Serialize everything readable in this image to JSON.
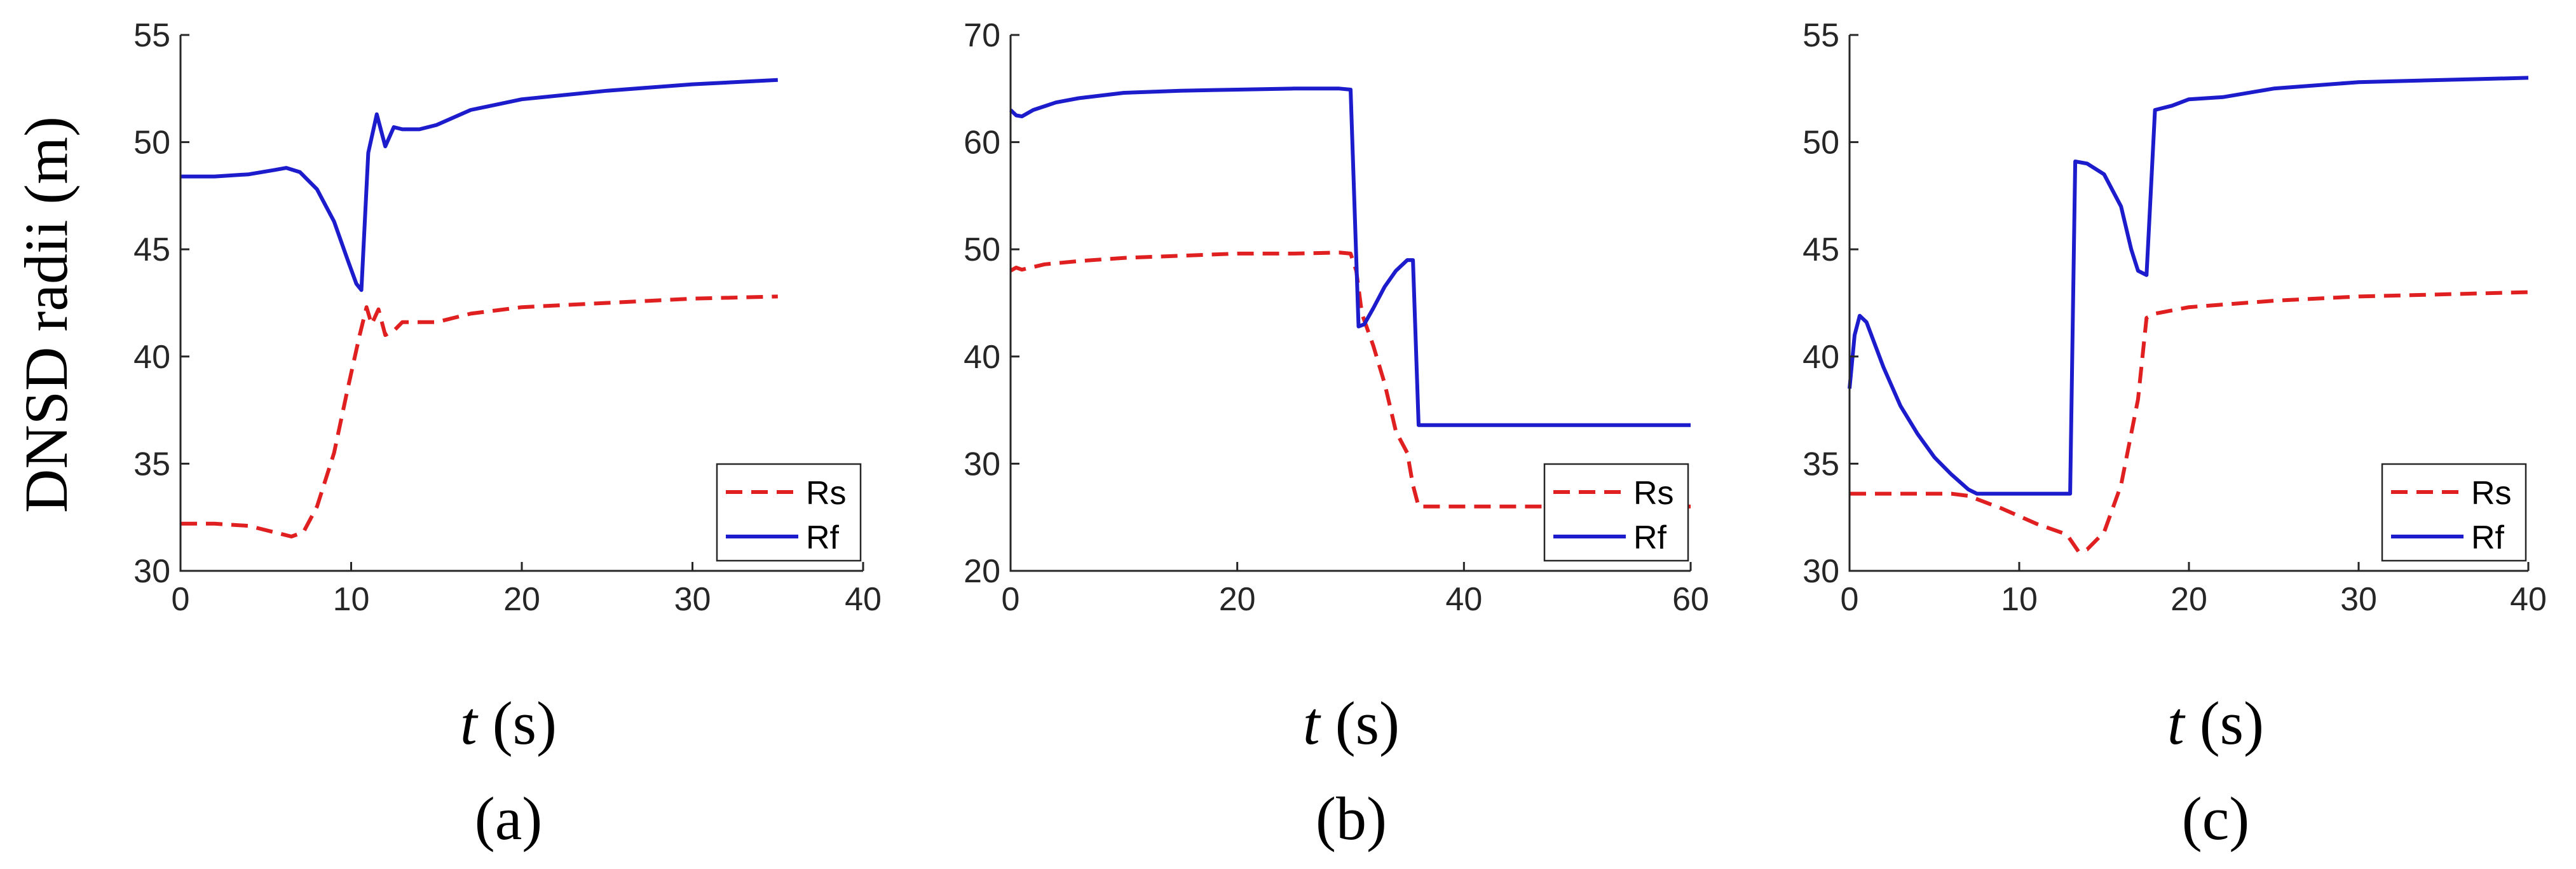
{
  "ylabel": "DNSD radii (m)",
  "chart_data": [
    {
      "type": "line",
      "caption": "(a)",
      "xlabel_var": "t",
      "xlabel_unit": " (s)",
      "xlim": [
        0,
        40
      ],
      "ylim": [
        30,
        55
      ],
      "xticks": [
        0,
        10,
        20,
        30,
        40
      ],
      "yticks": [
        30,
        35,
        40,
        45,
        50,
        55
      ],
      "legend_position": "bottom-right",
      "series": [
        {
          "name": "Rs",
          "color": "#e02020",
          "dash": "dashed",
          "points": [
            [
              0,
              32.2
            ],
            [
              2,
              32.2
            ],
            [
              4,
              32.1
            ],
            [
              5.5,
              31.8
            ],
            [
              6.5,
              31.6
            ],
            [
              7.2,
              31.8
            ],
            [
              8,
              33
            ],
            [
              9,
              35.5
            ],
            [
              9.8,
              38.5
            ],
            [
              10.5,
              41
            ],
            [
              10.9,
              42.3
            ],
            [
              11.2,
              41.5
            ],
            [
              11.6,
              42.2
            ],
            [
              12,
              41
            ],
            [
              12.5,
              41.2
            ],
            [
              13,
              41.6
            ],
            [
              15,
              41.6
            ],
            [
              17,
              42
            ],
            [
              20,
              42.3
            ],
            [
              25,
              42.5
            ],
            [
              30,
              42.7
            ],
            [
              35,
              42.8
            ]
          ]
        },
        {
          "name": "Rf",
          "color": "#1c1ccc",
          "dash": "solid",
          "points": [
            [
              0,
              48.4
            ],
            [
              2,
              48.4
            ],
            [
              4,
              48.5
            ],
            [
              5.5,
              48.7
            ],
            [
              6.2,
              48.8
            ],
            [
              7,
              48.6
            ],
            [
              8,
              47.8
            ],
            [
              9,
              46.3
            ],
            [
              9.8,
              44.5
            ],
            [
              10.3,
              43.4
            ],
            [
              10.6,
              43.1
            ],
            [
              11,
              49.5
            ],
            [
              11.5,
              51.3
            ],
            [
              12,
              49.8
            ],
            [
              12.5,
              50.7
            ],
            [
              13,
              50.6
            ],
            [
              14,
              50.6
            ],
            [
              15,
              50.8
            ],
            [
              17,
              51.5
            ],
            [
              20,
              52
            ],
            [
              25,
              52.4
            ],
            [
              30,
              52.7
            ],
            [
              35,
              52.9
            ]
          ]
        }
      ]
    },
    {
      "type": "line",
      "caption": "(b)",
      "xlabel_var": "t",
      "xlabel_unit": " (s)",
      "xlim": [
        0,
        60
      ],
      "ylim": [
        20,
        70
      ],
      "xticks": [
        0,
        20,
        40,
        60
      ],
      "yticks": [
        20,
        30,
        40,
        50,
        60,
        70
      ],
      "legend_position": "bottom-right",
      "series": [
        {
          "name": "Rs",
          "color": "#e02020",
          "dash": "dashed",
          "points": [
            [
              0,
              48
            ],
            [
              0.5,
              48.3
            ],
            [
              1,
              48.1
            ],
            [
              3,
              48.6
            ],
            [
              6,
              48.9
            ],
            [
              10,
              49.2
            ],
            [
              15,
              49.4
            ],
            [
              20,
              49.6
            ],
            [
              25,
              49.6
            ],
            [
              29,
              49.7
            ],
            [
              30,
              49.6
            ],
            [
              30.5,
              48
            ],
            [
              31,
              44
            ],
            [
              32,
              41
            ],
            [
              33,
              37.5
            ],
            [
              34,
              33
            ],
            [
              35,
              31
            ],
            [
              35.5,
              28
            ],
            [
              36,
              26
            ],
            [
              40,
              26
            ],
            [
              50,
              26
            ],
            [
              60,
              26
            ]
          ]
        },
        {
          "name": "Rf",
          "color": "#1c1ccc",
          "dash": "solid",
          "points": [
            [
              0,
              63
            ],
            [
              0.5,
              62.5
            ],
            [
              1,
              62.4
            ],
            [
              2,
              63
            ],
            [
              4,
              63.7
            ],
            [
              6,
              64.1
            ],
            [
              10,
              64.6
            ],
            [
              15,
              64.8
            ],
            [
              20,
              64.9
            ],
            [
              25,
              65
            ],
            [
              29,
              65
            ],
            [
              30,
              64.9
            ],
            [
              30.7,
              42.8
            ],
            [
              31.2,
              43
            ],
            [
              32,
              44.5
            ],
            [
              33,
              46.5
            ],
            [
              34,
              48
            ],
            [
              35,
              49
            ],
            [
              35.5,
              49
            ],
            [
              36,
              33.6
            ],
            [
              40,
              33.6
            ],
            [
              50,
              33.6
            ],
            [
              60,
              33.6
            ]
          ]
        }
      ]
    },
    {
      "type": "line",
      "caption": "(c)",
      "xlabel_var": "t",
      "xlabel_unit": " (s)",
      "xlim": [
        0,
        40
      ],
      "ylim": [
        30,
        55
      ],
      "xticks": [
        0,
        10,
        20,
        30,
        40
      ],
      "yticks": [
        30,
        35,
        40,
        45,
        50,
        55
      ],
      "legend_position": "bottom-right",
      "series": [
        {
          "name": "Rs",
          "color": "#e02020",
          "dash": "dashed",
          "points": [
            [
              0,
              33.6
            ],
            [
              2,
              33.6
            ],
            [
              4,
              33.6
            ],
            [
              6,
              33.6
            ],
            [
              7,
              33.5
            ],
            [
              9,
              32.9
            ],
            [
              11,
              32.2
            ],
            [
              12.8,
              31.7
            ],
            [
              13.5,
              30.9
            ],
            [
              14,
              31
            ],
            [
              15,
              31.8
            ],
            [
              16,
              34
            ],
            [
              17,
              38
            ],
            [
              17.5,
              41.8
            ],
            [
              18,
              42
            ],
            [
              20,
              42.3
            ],
            [
              25,
              42.6
            ],
            [
              30,
              42.8
            ],
            [
              35,
              42.9
            ],
            [
              40,
              43
            ]
          ]
        },
        {
          "name": "Rf",
          "color": "#1c1ccc",
          "dash": "solid",
          "points": [
            [
              0,
              38.5
            ],
            [
              0.3,
              41
            ],
            [
              0.6,
              41.9
            ],
            [
              1,
              41.6
            ],
            [
              2,
              39.5
            ],
            [
              3,
              37.7
            ],
            [
              4,
              36.4
            ],
            [
              5,
              35.3
            ],
            [
              6,
              34.5
            ],
            [
              7,
              33.8
            ],
            [
              7.5,
              33.6
            ],
            [
              13,
              33.6
            ],
            [
              13.3,
              49.1
            ],
            [
              14,
              49
            ],
            [
              15,
              48.5
            ],
            [
              16,
              47
            ],
            [
              16.6,
              45
            ],
            [
              17,
              44
            ],
            [
              17.5,
              43.8
            ],
            [
              18,
              51.5
            ],
            [
              19,
              51.7
            ],
            [
              20,
              52
            ],
            [
              22,
              52.1
            ],
            [
              25,
              52.5
            ],
            [
              30,
              52.8
            ],
            [
              35,
              52.9
            ],
            [
              40,
              53
            ]
          ]
        }
      ]
    }
  ]
}
